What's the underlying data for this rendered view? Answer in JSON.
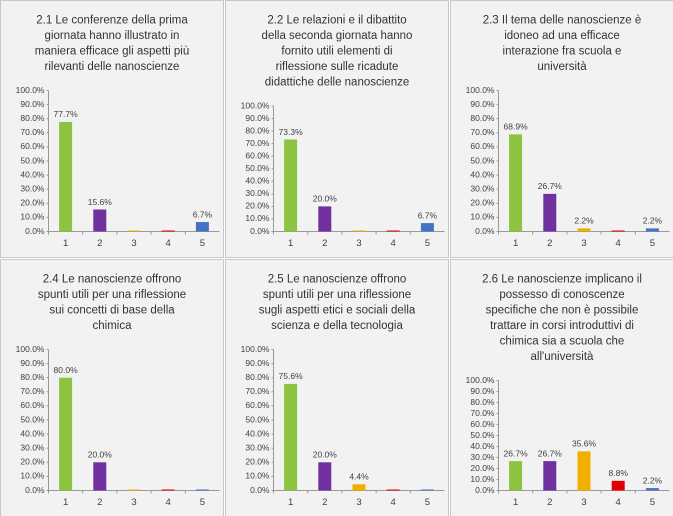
{
  "chart_data": [
    {
      "type": "bar",
      "title": [
        "2.1 Le conferenze della prima",
        "giornata hanno illustrato in",
        "maniera efficace gli aspetti più",
        "rilevanti delle nanoscienze"
      ],
      "categories": [
        "1",
        "2",
        "3",
        "4",
        "5"
      ],
      "values": [
        77.7,
        15.6,
        0,
        0,
        6.7
      ],
      "value_labels": [
        "77.7%",
        "15.6%",
        null,
        null,
        "6.7%"
      ],
      "colors": [
        "#8dc43f",
        "#7030a0",
        "#f0b000",
        "#e00000",
        "#4472c4"
      ],
      "ylim": [
        0,
        100
      ],
      "yticks": [
        {
          "value": 0,
          "label": "0.0%"
        },
        {
          "value": 10,
          "label": "10.0%"
        },
        {
          "value": 20,
          "label": "20.0%"
        },
        {
          "value": 30,
          "label": "30.0%"
        },
        {
          "value": 40,
          "label": "40.0%"
        },
        {
          "value": 50,
          "label": "50.0%"
        },
        {
          "value": 60,
          "label": "60.0%"
        },
        {
          "value": 70,
          "label": "70.0%"
        },
        {
          "value": 80,
          "label": "80.0%"
        },
        {
          "value": 90,
          "label": "90.0%"
        },
        {
          "value": 100,
          "label": "100.0%"
        }
      ]
    },
    {
      "type": "bar",
      "title": [
        "2.2 Le relazioni e il dibattito",
        "della seconda giornata hanno",
        "fornito utili elementi di",
        "riflessione sulle ricadute",
        "didattiche delle nanoscienze"
      ],
      "categories": [
        "1",
        "2",
        "3",
        "4",
        "5"
      ],
      "values": [
        73.3,
        20.0,
        0,
        0,
        6.7
      ],
      "value_labels": [
        "73.3%",
        "20.0%",
        null,
        null,
        "6.7%"
      ],
      "colors": [
        "#8dc43f",
        "#7030a0",
        "#f0b000",
        "#e00000",
        "#4472c4"
      ],
      "ylim": [
        0,
        100
      ],
      "yticks": [
        {
          "value": 0,
          "label": "0.0%"
        },
        {
          "value": 10,
          "label": "10.0%"
        },
        {
          "value": 20,
          "label": "20.0%"
        },
        {
          "value": 30,
          "label": "30.0%"
        },
        {
          "value": 40,
          "label": "40.0%"
        },
        {
          "value": 50,
          "label": "50.0%"
        },
        {
          "value": 60,
          "label": "60.0%"
        },
        {
          "value": 70,
          "label": "70.0%"
        },
        {
          "value": 80,
          "label": "80.0%"
        },
        {
          "value": 90,
          "label": "90.0%"
        },
        {
          "value": 100,
          "label": "100.0%"
        }
      ]
    },
    {
      "type": "bar",
      "title": [
        "2.3 Il tema delle nanoscienze è",
        "idoneo ad una efficace",
        "interazione fra scuola e",
        "università"
      ],
      "categories": [
        "1",
        "2",
        "3",
        "4",
        "5"
      ],
      "values": [
        68.9,
        26.7,
        2.2,
        0,
        2.2
      ],
      "value_labels": [
        "68.9%",
        "26.7%",
        "2.2%",
        null,
        "2.2%"
      ],
      "colors": [
        "#8dc43f",
        "#7030a0",
        "#f0b000",
        "#e00000",
        "#4472c4"
      ],
      "ylim": [
        0,
        100
      ],
      "yticks": [
        {
          "value": 0,
          "label": "0.0%"
        },
        {
          "value": 10,
          "label": "10.0%"
        },
        {
          "value": 20,
          "label": "20.0%"
        },
        {
          "value": 30,
          "label": "30.0%"
        },
        {
          "value": 40,
          "label": "40.0%"
        },
        {
          "value": 50,
          "label": "50.0%"
        },
        {
          "value": 60,
          "label": "60.0%"
        },
        {
          "value": 70,
          "label": "70.0%"
        },
        {
          "value": 80,
          "label": "80.0%"
        },
        {
          "value": 90,
          "label": "90.0%"
        },
        {
          "value": 100,
          "label": "100.0%"
        }
      ]
    },
    {
      "type": "bar",
      "title": [
        "2.4 Le nanoscienze offrono",
        "spunti utili per una riflessione",
        "sui concetti di base della",
        "chimica"
      ],
      "categories": [
        "1",
        "2",
        "3",
        "4",
        "5"
      ],
      "values": [
        80.0,
        20.0,
        0,
        0,
        0
      ],
      "value_labels": [
        "80.0%",
        "20.0%",
        null,
        null,
        null
      ],
      "colors": [
        "#8dc43f",
        "#7030a0",
        "#f0b000",
        "#e00000",
        "#4472c4"
      ],
      "ylim": [
        0,
        100
      ],
      "yticks": [
        {
          "value": 0,
          "label": "0.0%"
        },
        {
          "value": 10,
          "label": "10.0%"
        },
        {
          "value": 20,
          "label": "20.0%"
        },
        {
          "value": 30,
          "label": "30.0%"
        },
        {
          "value": 40,
          "label": "40.0%"
        },
        {
          "value": 50,
          "label": "50.0%"
        },
        {
          "value": 60,
          "label": "60.0%"
        },
        {
          "value": 70,
          "label": "70.0%"
        },
        {
          "value": 80,
          "label": "80.0%"
        },
        {
          "value": 90,
          "label": "90.0%"
        },
        {
          "value": 100,
          "label": "100.0%"
        }
      ]
    },
    {
      "type": "bar",
      "title": [
        "2.5 Le nanoscienze offrono",
        "spunti utili per una riflessione",
        "sugli aspetti etici e sociali della",
        "scienza e della tecnologia"
      ],
      "categories": [
        "1",
        "2",
        "3",
        "4",
        "5"
      ],
      "values": [
        75.6,
        20.0,
        4.4,
        0,
        0
      ],
      "value_labels": [
        "75.6%",
        "20.0%",
        "4.4%",
        null,
        null
      ],
      "colors": [
        "#8dc43f",
        "#7030a0",
        "#f0b000",
        "#e00000",
        "#4472c4"
      ],
      "ylim": [
        0,
        100
      ],
      "yticks": [
        {
          "value": 0,
          "label": "0.0%"
        },
        {
          "value": 10,
          "label": "10.0%"
        },
        {
          "value": 20,
          "label": "20.0%"
        },
        {
          "value": 30,
          "label": "30.0%"
        },
        {
          "value": 40,
          "label": "40.0%"
        },
        {
          "value": 50,
          "label": "50.0%"
        },
        {
          "value": 60,
          "label": "60.0%"
        },
        {
          "value": 70,
          "label": "70.0%"
        },
        {
          "value": 80,
          "label": "80.0%"
        },
        {
          "value": 90,
          "label": "90.0%"
        },
        {
          "value": 100,
          "label": "100.0%"
        }
      ]
    },
    {
      "type": "bar",
      "title": [
        "2.6 Le nanoscienze implicano il",
        "possesso di conoscenze",
        "specifiche che non è possibile",
        "trattare in corsi introduttivi di",
        "chimica sia a scuola che",
        "all'università"
      ],
      "categories": [
        "1",
        "2",
        "3",
        "4",
        "5"
      ],
      "values": [
        26.7,
        26.7,
        35.6,
        8.8,
        2.2
      ],
      "value_labels": [
        "26.7%",
        "26.7%",
        "35.6%",
        "8.8%",
        "2.2%"
      ],
      "colors": [
        "#8dc43f",
        "#7030a0",
        "#f0b000",
        "#e00000",
        "#4472c4"
      ],
      "ylim": [
        0,
        100
      ],
      "yticks": [
        {
          "value": 0,
          "label": "0.0%"
        },
        {
          "value": 10,
          "label": "10.0%"
        },
        {
          "value": 20,
          "label": "20.0%"
        },
        {
          "value": 30,
          "label": "30.0%"
        },
        {
          "value": 40,
          "label": "40.0%"
        },
        {
          "value": 50,
          "label": "50.0%"
        },
        {
          "value": 60,
          "label": "60.0%"
        },
        {
          "value": 70,
          "label": "70.0%"
        },
        {
          "value": 80,
          "label": "80.0%"
        },
        {
          "value": 90,
          "label": "90.0%"
        },
        {
          "value": 100,
          "label": "100.0%"
        }
      ]
    }
  ]
}
